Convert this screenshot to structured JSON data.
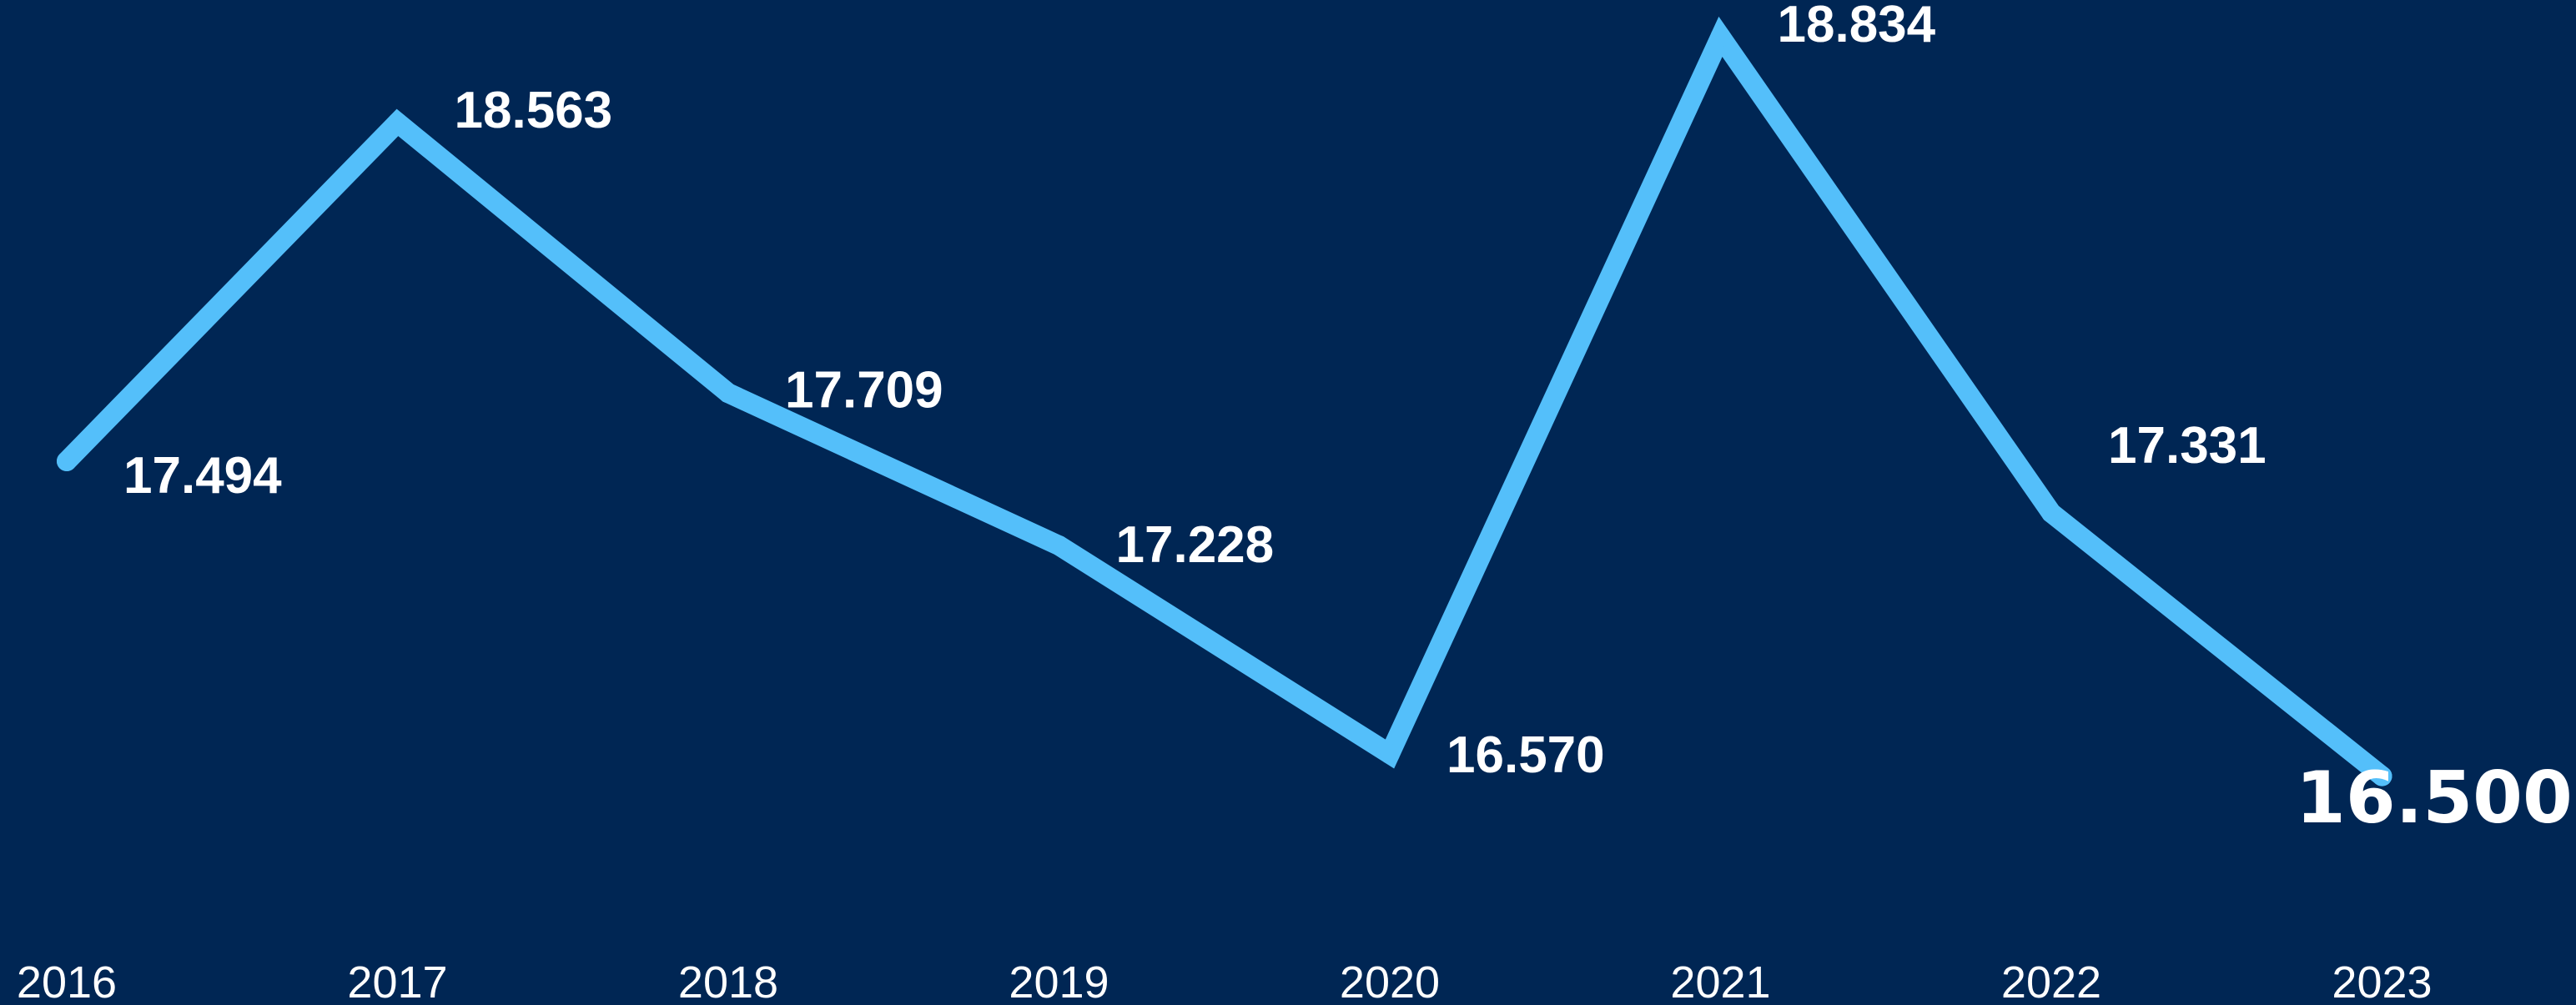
{
  "colors": {
    "background": "#002654",
    "line": "#54BFFA",
    "label": "#ffffff",
    "highlight_label": "#54BFFA"
  },
  "chart_data": {
    "type": "line",
    "x": [
      "2016",
      "2017",
      "2018",
      "2019",
      "2020",
      "2021",
      "2022",
      "2023"
    ],
    "series": [
      {
        "values": [
          17.494,
          18.563,
          17.709,
          17.228,
          16.57,
          18.834,
          17.331,
          16.5
        ],
        "data_labels": [
          "17.494",
          "18.563",
          "17.709",
          "17.228",
          "16.570",
          "18.834",
          "17.331",
          "16.500"
        ]
      }
    ],
    "highlight_last_point": true,
    "grid": false,
    "legend": "none",
    "y_axis_visible": false
  }
}
